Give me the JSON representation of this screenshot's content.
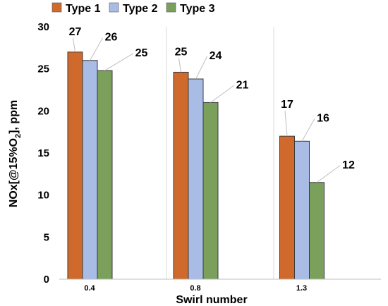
{
  "chart_data": {
    "type": "bar",
    "title": "",
    "xlabel": "Swirl number",
    "ylabel_main": "NOx[@15%O",
    "ylabel_sub": "2",
    "ylabel_end": "], ppm",
    "categories": [
      "0.4",
      "0.8",
      "1.3"
    ],
    "series": [
      {
        "name": "Type 1",
        "color": "#CF6A2C",
        "values": [
          27,
          24.6,
          17
        ],
        "labels": [
          "27",
          "25",
          "17"
        ]
      },
      {
        "name": "Type 2",
        "color": "#A9BCE5",
        "values": [
          26,
          23.8,
          16.4
        ],
        "labels": [
          "26",
          "24",
          "16"
        ]
      },
      {
        "name": "Type 3",
        "color": "#7BA05B",
        "values": [
          24.8,
          21,
          11.5
        ],
        "labels": [
          "25",
          "21",
          "12"
        ]
      }
    ],
    "ylim": [
      0,
      30
    ],
    "yticks": [
      "0",
      "5",
      "10",
      "15",
      "20",
      "25",
      "30"
    ],
    "legend_position": "top",
    "grid": "vertical"
  }
}
